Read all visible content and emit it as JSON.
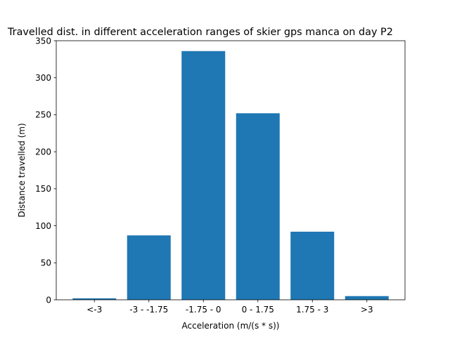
{
  "chart_data": {
    "type": "bar",
    "title": "Travelled dist. in different acceleration ranges of skier gps manca on day P2",
    "xlabel": "Acceleration (m/(s * s))",
    "ylabel": "Distance travelled (m)",
    "categories": [
      "<-3",
      "-3 - -1.75",
      "-1.75 - 0",
      "0 - 1.75",
      "1.75 - 3",
      ">3"
    ],
    "values": [
      2,
      87,
      336,
      252,
      92,
      5
    ],
    "ylim": [
      0,
      350
    ],
    "yticks": [
      0,
      50,
      100,
      150,
      200,
      250,
      300,
      350
    ],
    "bar_color": "#1f77b4",
    "grid": false,
    "legend": "none"
  }
}
